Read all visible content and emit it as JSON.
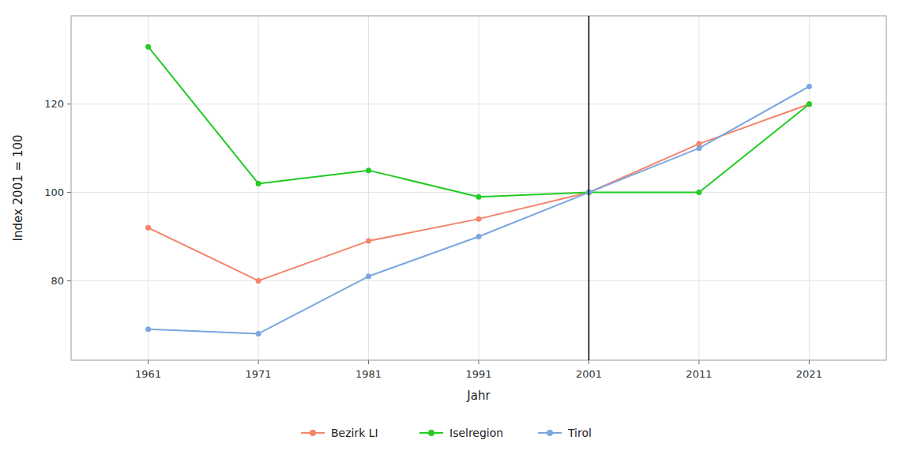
{
  "chart_data": {
    "type": "line",
    "x": [
      1961,
      1971,
      1981,
      1991,
      2001,
      2011,
      2021
    ],
    "series": [
      {
        "name": "Bezirk LI",
        "color": "#F4846A",
        "values": [
          92,
          80,
          89,
          94,
          100,
          111,
          120
        ],
        "marker": "circle"
      },
      {
        "name": "Iselregion",
        "color": "#22CC22",
        "values": [
          133,
          102,
          105,
          99,
          100,
          100,
          120
        ],
        "marker": "circle"
      },
      {
        "name": "Tirol",
        "color": "#7BA7E0",
        "values": [
          69,
          68,
          81,
          90,
          100,
          110,
          124
        ],
        "marker": "circle"
      }
    ],
    "x_label": "Jahr",
    "y_label": "Index 2001 = 100",
    "xlim": [
      1954,
      2028
    ],
    "xticks": [
      1961,
      1971,
      1981,
      1991,
      2001,
      2011,
      2021
    ],
    "ylim": [
      62,
      140
    ],
    "yticks": [
      80,
      100,
      120
    ],
    "vlines": [
      {
        "x": 2001,
        "color": "black"
      }
    ],
    "grid": true,
    "legend": "bottom"
  }
}
